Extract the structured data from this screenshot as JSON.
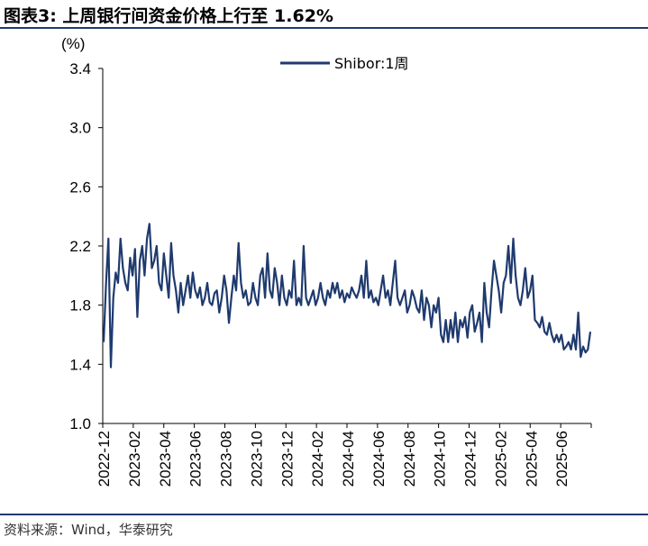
{
  "title": "图表3:  上周银行间资金价格上行至 1.62%",
  "source": "资料来源：Wind，华泰研究",
  "chart_data": {
    "type": "line",
    "unit_label": "(%)",
    "ylim": [
      1.0,
      3.4
    ],
    "yticks": [
      "1.0",
      "1.4",
      "1.8",
      "2.2",
      "2.6",
      "3.0",
      "3.4"
    ],
    "xticks": [
      "2022-12",
      "2023-02",
      "2023-04",
      "2023-06",
      "2023-08",
      "2023-10",
      "2023-12",
      "2024-02",
      "2024-04",
      "2024-06",
      "2024-08",
      "2024-10",
      "2024-12",
      "2025-02",
      "2025-04",
      "2025-06"
    ],
    "legend": {
      "position": "top-center"
    },
    "line_color": "#1f3a6e",
    "series": [
      {
        "name": "Shibor:1周",
        "x_start": "2022-12-01",
        "x_end": "2025-07-18",
        "values": [
          1.55,
          1.95,
          2.25,
          1.38,
          1.85,
          2.02,
          1.95,
          2.25,
          2.05,
          1.95,
          1.9,
          2.12,
          2.0,
          2.18,
          1.72,
          2.1,
          2.2,
          2.0,
          2.25,
          2.35,
          2.05,
          2.1,
          2.2,
          1.95,
          1.9,
          2.15,
          2.0,
          1.85,
          2.22,
          2.0,
          1.9,
          1.75,
          1.95,
          1.8,
          1.9,
          2.0,
          1.85,
          2.02,
          1.9,
          1.85,
          1.92,
          1.8,
          1.85,
          1.95,
          1.82,
          1.8,
          1.88,
          1.9,
          1.75,
          1.85,
          2.0,
          1.9,
          1.68,
          1.85,
          2.0,
          1.9,
          2.22,
          1.95,
          1.85,
          1.9,
          1.8,
          1.82,
          1.95,
          1.85,
          1.8,
          2.0,
          2.05,
          1.85,
          2.15,
          1.9,
          1.85,
          2.05,
          1.95,
          1.8,
          2.0,
          1.85,
          1.8,
          1.9,
          1.85,
          2.1,
          1.8,
          1.85,
          1.8,
          2.2,
          1.85,
          1.8,
          1.85,
          1.9,
          1.8,
          1.85,
          1.95,
          1.85,
          1.8,
          1.9,
          1.85,
          1.95,
          1.88,
          1.95,
          1.85,
          1.9,
          1.82,
          1.88,
          1.85,
          1.92,
          1.88,
          1.85,
          1.9,
          2.0,
          1.85,
          2.1,
          1.85,
          1.9,
          1.82,
          1.85,
          1.8,
          1.9,
          2.0,
          1.85,
          1.9,
          1.8,
          1.95,
          2.1,
          1.85,
          1.8,
          1.85,
          1.9,
          1.75,
          1.8,
          1.9,
          1.85,
          1.78,
          1.75,
          1.9,
          1.7,
          1.85,
          1.8,
          1.65,
          1.8,
          1.75,
          1.85,
          1.6,
          1.55,
          1.7,
          1.55,
          1.7,
          1.58,
          1.75,
          1.55,
          1.7,
          1.65,
          1.72,
          1.58,
          1.75,
          1.8,
          1.62,
          1.68,
          1.75,
          1.55,
          1.95,
          1.75,
          1.65,
          1.9,
          2.1,
          2.0,
          1.9,
          1.75,
          1.95,
          2.0,
          2.2,
          1.95,
          2.25,
          2.0,
          1.85,
          1.8,
          1.9,
          2.05,
          1.85,
          1.9,
          2.0,
          1.7,
          1.68,
          1.65,
          1.72,
          1.62,
          1.6,
          1.68,
          1.6,
          1.55,
          1.6,
          1.55,
          1.6,
          1.5,
          1.52,
          1.55,
          1.5,
          1.6,
          1.5,
          1.75,
          1.45,
          1.52,
          1.48,
          1.5,
          1.62
        ]
      }
    ]
  }
}
